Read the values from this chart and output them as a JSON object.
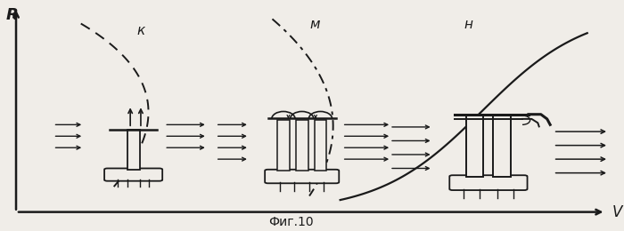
{
  "title": "Фиг.10",
  "ylabel": "R",
  "xlabel": "V",
  "bg_color": "#f0ede8",
  "line_color": "#1a1a1a",
  "label_K": "к",
  "label_M": "м",
  "label_N": "н"
}
